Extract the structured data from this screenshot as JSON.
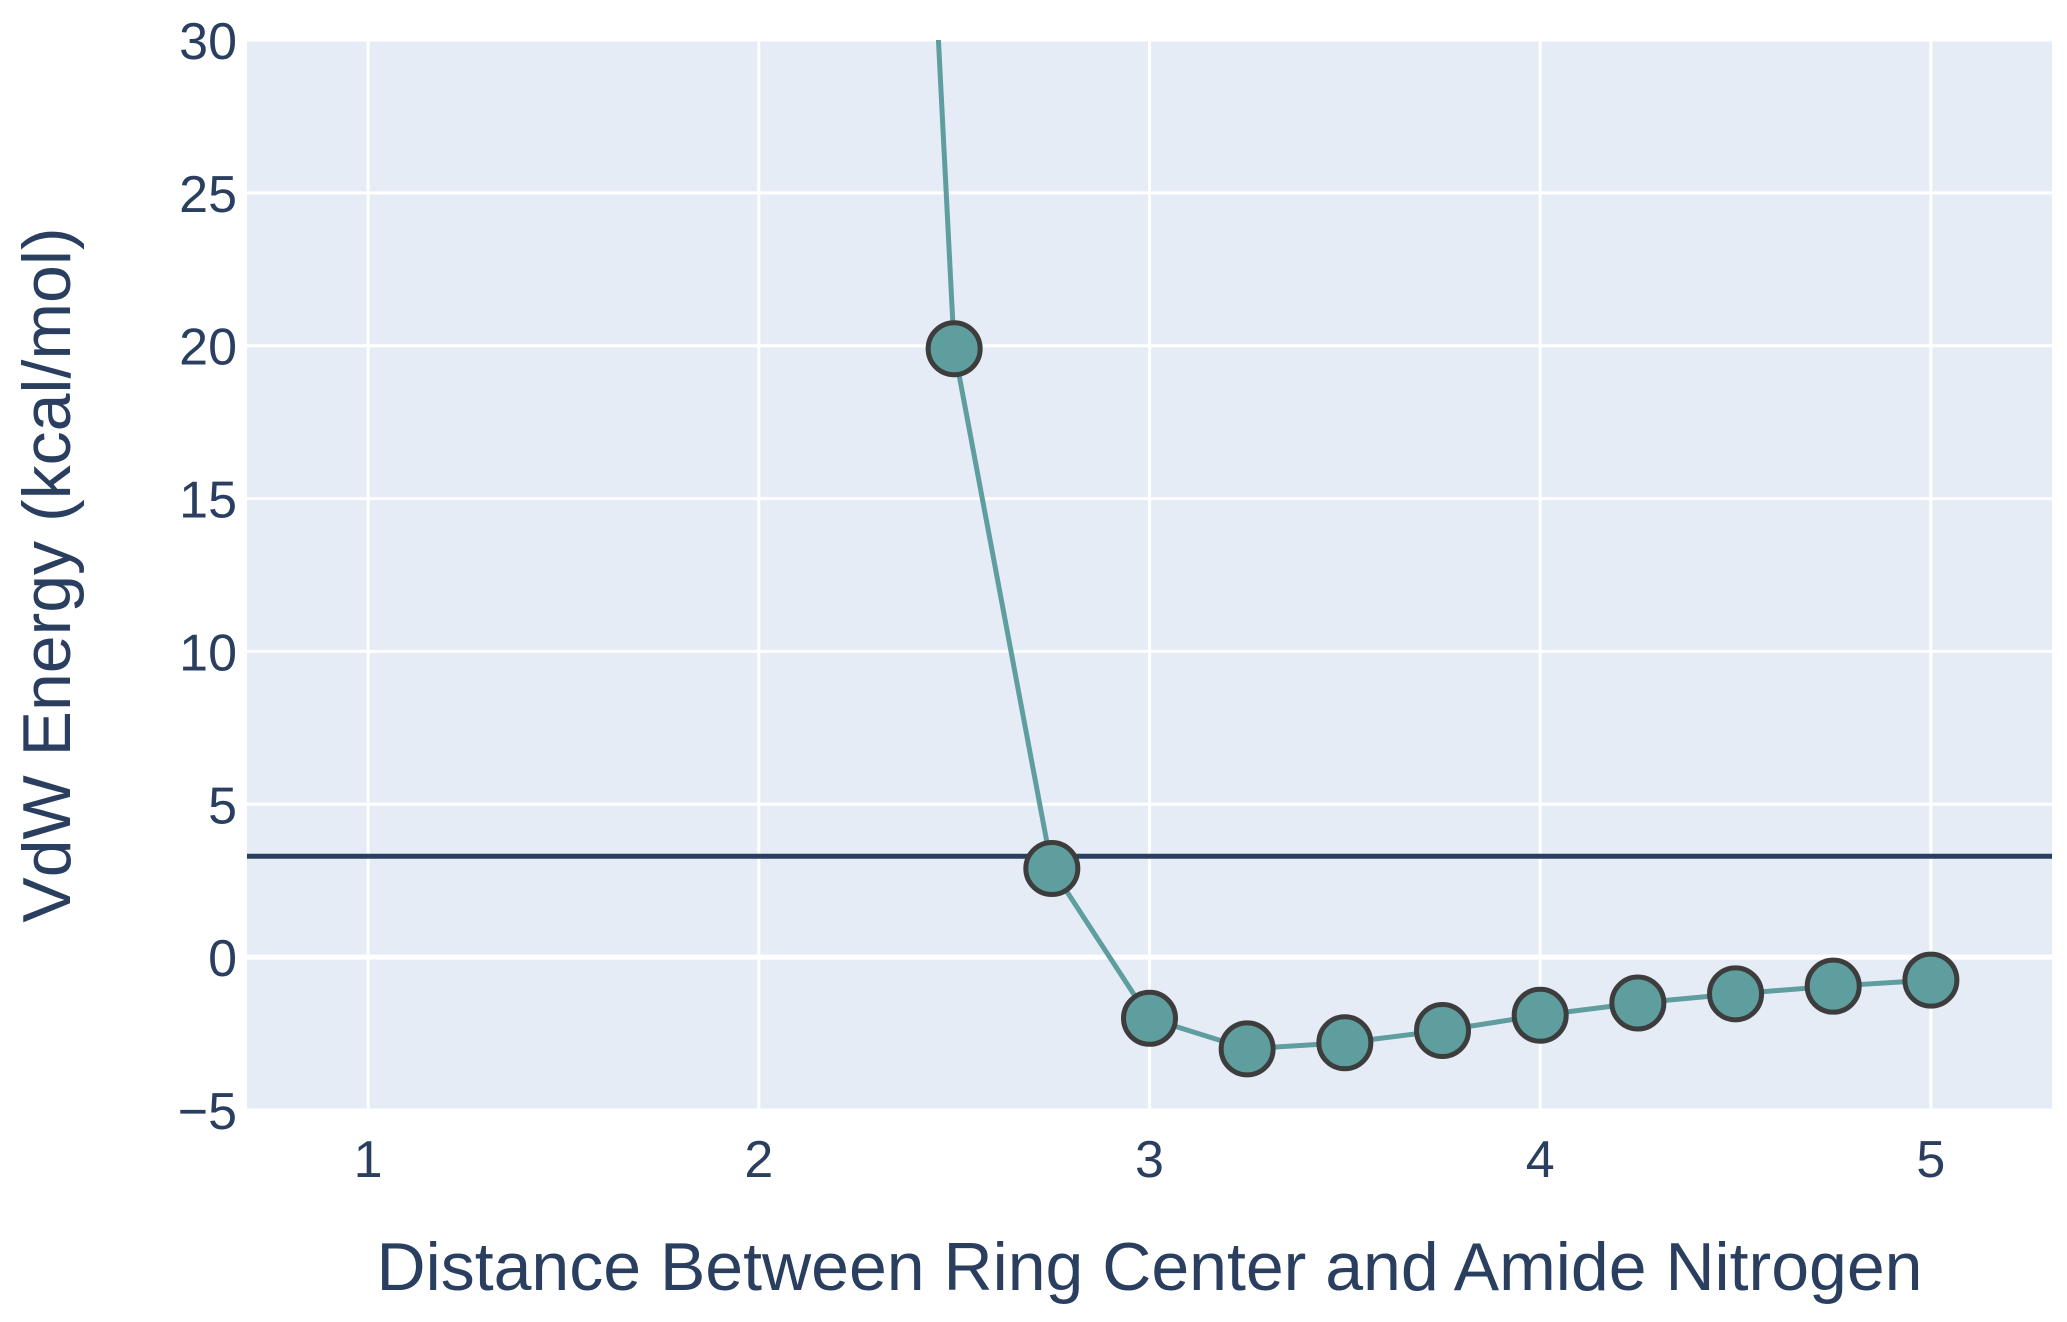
{
  "chart_data": {
    "type": "line",
    "title": "",
    "xlabel": "Distance Between Ring Center and Amide Nitrogen",
    "ylabel": "VdW Energy (kcal/mol)",
    "xlim": [
      0.69,
      5.31
    ],
    "ylim": [
      -5,
      30
    ],
    "x_ticks": [
      1,
      2,
      3,
      4,
      5
    ],
    "x_tick_labels": [
      "1",
      "2",
      "3",
      "4",
      "5"
    ],
    "y_ticks": [
      -5,
      0,
      5,
      10,
      15,
      20,
      25,
      30
    ],
    "y_tick_labels": [
      "−5",
      "0",
      "5",
      "10",
      "15",
      "20",
      "25",
      "30"
    ],
    "grid": true,
    "plot_background": "#e5ecf6",
    "series": [
      {
        "x": [
          2.4,
          2.5,
          2.75,
          3.0,
          3.25,
          3.5,
          3.75,
          4.0,
          4.25,
          4.5,
          4.75,
          5.0
        ],
        "y": [
          45.0,
          19.9,
          2.9,
          -2.0,
          -3.0,
          -2.8,
          -2.4,
          -1.9,
          -1.5,
          -1.2,
          -0.95,
          -0.75
        ],
        "marker_from_index": 1,
        "line_color": "#5f9e9e",
        "marker_fill": "#5f9e9e",
        "marker_edge": "#3d3d3d"
      }
    ],
    "reference_line": {
      "y": 3.3,
      "color": "#2a3f5f"
    }
  }
}
